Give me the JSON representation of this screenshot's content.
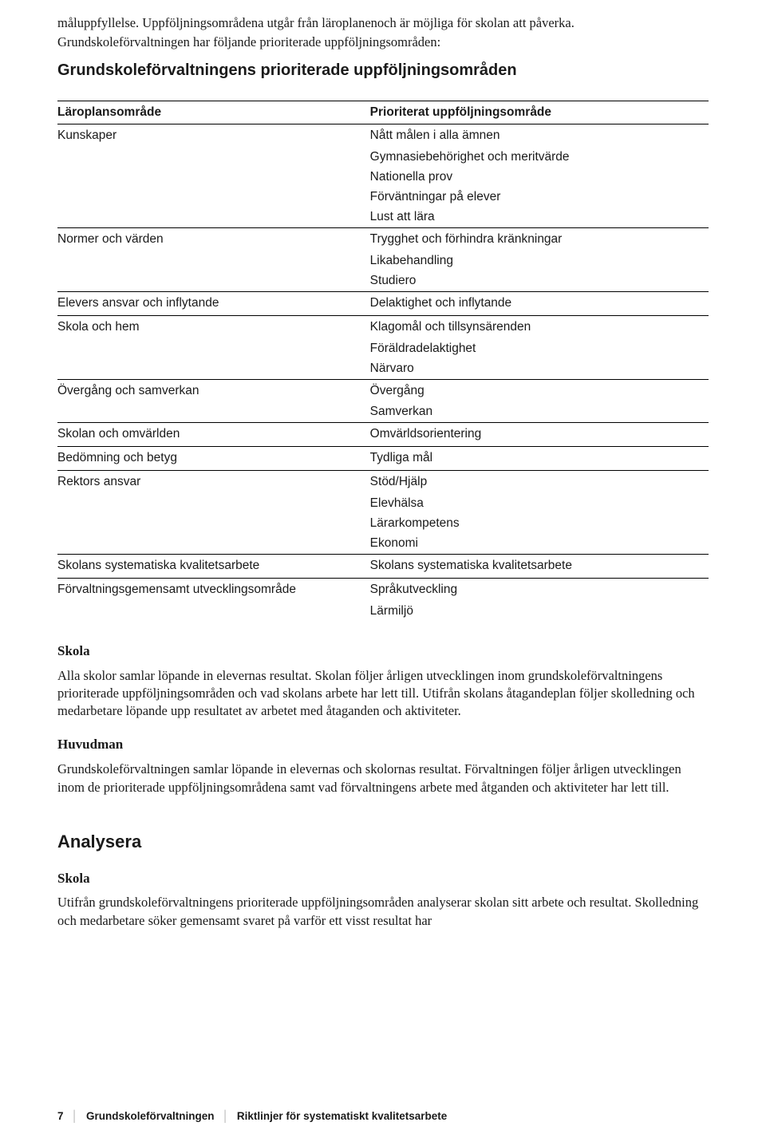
{
  "intro": {
    "par1_line1": "måluppfyllelse. Uppföljningsområdena utgår från läroplanenoch är möjliga för skolan att påverka.",
    "par1_line2": "Grundskoleförvaltningen har följande prioriterade uppföljningsområden:",
    "subheading": "Grundskoleförvaltningens prioriterade uppföljningsområden"
  },
  "table": {
    "header_left": "Läroplansområde",
    "header_right": "Prioriterat uppföljningsområde",
    "rows": [
      {
        "left": "Kunskaper",
        "right": [
          "Nått målen i alla ämnen",
          "Gymnasiebehörighet och meritvärde",
          "Nationella prov",
          "Förväntningar på elever",
          "Lust att lära"
        ]
      },
      {
        "left": "Normer och värden",
        "right": [
          "Trygghet och förhindra kränkningar",
          "Likabehandling",
          "Studiero"
        ]
      },
      {
        "left": "Elevers ansvar och inflytande",
        "right": [
          "Delaktighet och inflytande"
        ]
      },
      {
        "left": "Skola och hem",
        "right": [
          "Klagomål och tillsynsärenden",
          "Föräldradelaktighet",
          "Närvaro"
        ]
      },
      {
        "left": "Övergång och samverkan",
        "right": [
          "Övergång",
          "Samverkan"
        ]
      },
      {
        "left": "Skolan och omvärlden",
        "right": [
          "Omvärldsorientering"
        ]
      },
      {
        "left": "Bedömning och betyg",
        "right": [
          "Tydliga mål"
        ]
      },
      {
        "left": "Rektors ansvar",
        "right": [
          "Stöd/Hjälp",
          "Elevhälsa",
          "Lärarkompetens",
          "Ekonomi"
        ]
      },
      {
        "left": "Skolans systematiska kvalitetsarbete",
        "right": [
          "Skolans systematiska kvalitetsarbete"
        ]
      },
      {
        "left": "Förvaltningsgemensamt utvecklingsområde",
        "right": [
          "Språkutveckling",
          "Lärmiljö"
        ]
      }
    ]
  },
  "skola1": {
    "heading": "Skola",
    "body": "Alla skolor samlar löpande in elevernas resultat. Skolan följer årligen utvecklingen inom grundskoleförvaltningens prioriterade uppföljningsområden och vad skolans arbete har lett till. Utifrån skolans åtagandeplan följer skolledning och medarbetare löpande upp resultatet av arbetet med åtaganden och aktiviteter."
  },
  "huvudman": {
    "heading": "Huvudman",
    "body": "Grundskoleförvaltningen samlar löpande in elevernas och skolornas resultat. Förvaltningen följer årligen utvecklingen inom de prioriterade uppföljningsområdena samt vad förvaltningens arbete med åtganden och aktiviteter har lett till."
  },
  "analysera_heading": "Analysera",
  "skola2": {
    "heading": "Skola",
    "body": "Utifrån grundskoleförvaltningens prioriterade uppföljningsområden analyserar skolan sitt arbete och resultat. Skolledning och medarbetare söker gemensamt svaret på varför ett visst resultat har"
  },
  "footer": {
    "page": "7",
    "org": "Grundskoleförvaltningen",
    "doc": "Riktlinjer för systematiskt kvalitetsarbete"
  }
}
